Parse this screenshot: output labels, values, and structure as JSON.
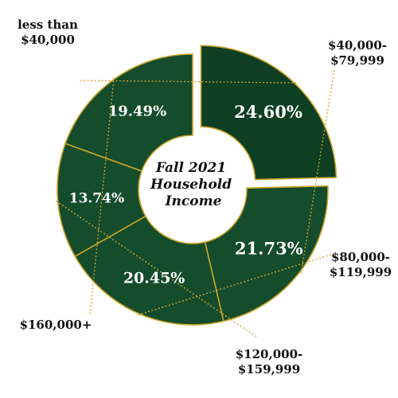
{
  "chart_data": {
    "type": "pie",
    "variant": "donut",
    "center_label": [
      "Fall 2021",
      "Household",
      "Income"
    ],
    "slices": [
      {
        "category": "less than $40,000",
        "label_lines": [
          "less than",
          "$40,000"
        ],
        "value": 24.6,
        "value_label": "24.60%",
        "exploded": true
      },
      {
        "category": "$40,000-$79,999",
        "label_lines": [
          "$40,000-",
          "$79,999"
        ],
        "value": 21.73,
        "value_label": "21.73%",
        "exploded": false
      },
      {
        "category": "$80,000-$119,999",
        "label_lines": [
          "$80,000-",
          "$119,999"
        ],
        "value": 20.45,
        "value_label": "20.45%",
        "exploded": false
      },
      {
        "category": "$120,000-$159,999",
        "label_lines": [
          "$120,000-",
          "$159,999"
        ],
        "value": 13.74,
        "value_label": "13.74%",
        "exploded": false
      },
      {
        "category": "$160,000+",
        "label_lines": [
          "$160,000+"
        ],
        "value": 19.49,
        "value_label": "19.49%",
        "exploded": false
      }
    ],
    "colors": {
      "slice_fill": "#154d2c",
      "exploded_fill": "#0e3f22",
      "outline": "#c9a227",
      "leader": "#d4a52a",
      "value_text": "#ffffff",
      "label_text": "#111111"
    }
  }
}
